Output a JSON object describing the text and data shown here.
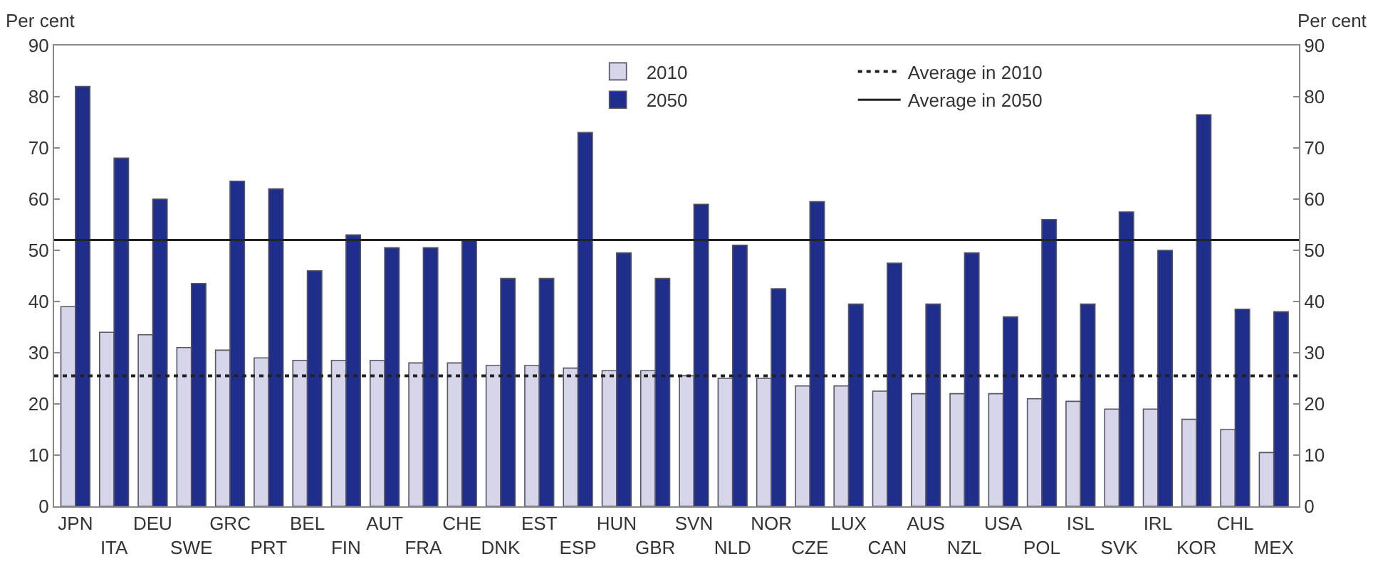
{
  "chart_data": {
    "type": "bar",
    "ylabel": "Per cent",
    "y2label": "Per cent",
    "categories": [
      "JPN",
      "ITA",
      "DEU",
      "SWE",
      "GRC",
      "PRT",
      "BEL",
      "FIN",
      "AUT",
      "FRA",
      "CHE",
      "DNK",
      "EST",
      "ESP",
      "HUN",
      "GBR",
      "SVN",
      "NLD",
      "NOR",
      "CZE",
      "LUX",
      "CAN",
      "AUS",
      "NZL",
      "USA",
      "POL",
      "ISL",
      "SVK",
      "IRL",
      "KOR",
      "CHL",
      "MEX"
    ],
    "series": [
      {
        "name": "2010",
        "color": "#d6d5ea",
        "values": [
          39,
          34,
          33.5,
          31,
          30.5,
          29,
          28.5,
          28.5,
          28.5,
          28,
          28,
          27.5,
          27.5,
          27,
          26.5,
          26.5,
          25.5,
          25,
          25,
          23.5,
          23.5,
          22.5,
          22,
          22,
          22,
          21,
          20.5,
          19,
          19,
          17,
          15,
          10.5
        ]
      },
      {
        "name": "2050",
        "color": "#1f2e8a",
        "values": [
          82,
          68,
          60,
          43.5,
          63.5,
          62,
          46,
          53,
          50.5,
          50.5,
          52,
          44.5,
          44.5,
          73,
          49.5,
          44.5,
          59,
          51,
          42.5,
          59.5,
          39.5,
          47.5,
          39.5,
          49.5,
          37,
          56,
          39.5,
          57.5,
          50,
          76.5,
          38.5,
          38
        ]
      }
    ],
    "ref_lines": [
      {
        "axis": "y",
        "value": 25.5,
        "label": "Average in 2010",
        "color": "#222222",
        "line_style": "dotted"
      },
      {
        "axis": "y",
        "value": 52,
        "label": "Average in 2050",
        "color": "#222222",
        "line_style": "solid"
      }
    ],
    "ylim": [
      0,
      90
    ],
    "yticks": [
      0,
      10,
      20,
      30,
      40,
      50,
      60,
      70,
      80,
      90
    ],
    "y2lim": [
      0,
      90
    ],
    "y2ticks": [
      0,
      10,
      20,
      30,
      40,
      50,
      60,
      70,
      80,
      90
    ],
    "legend": "top"
  }
}
